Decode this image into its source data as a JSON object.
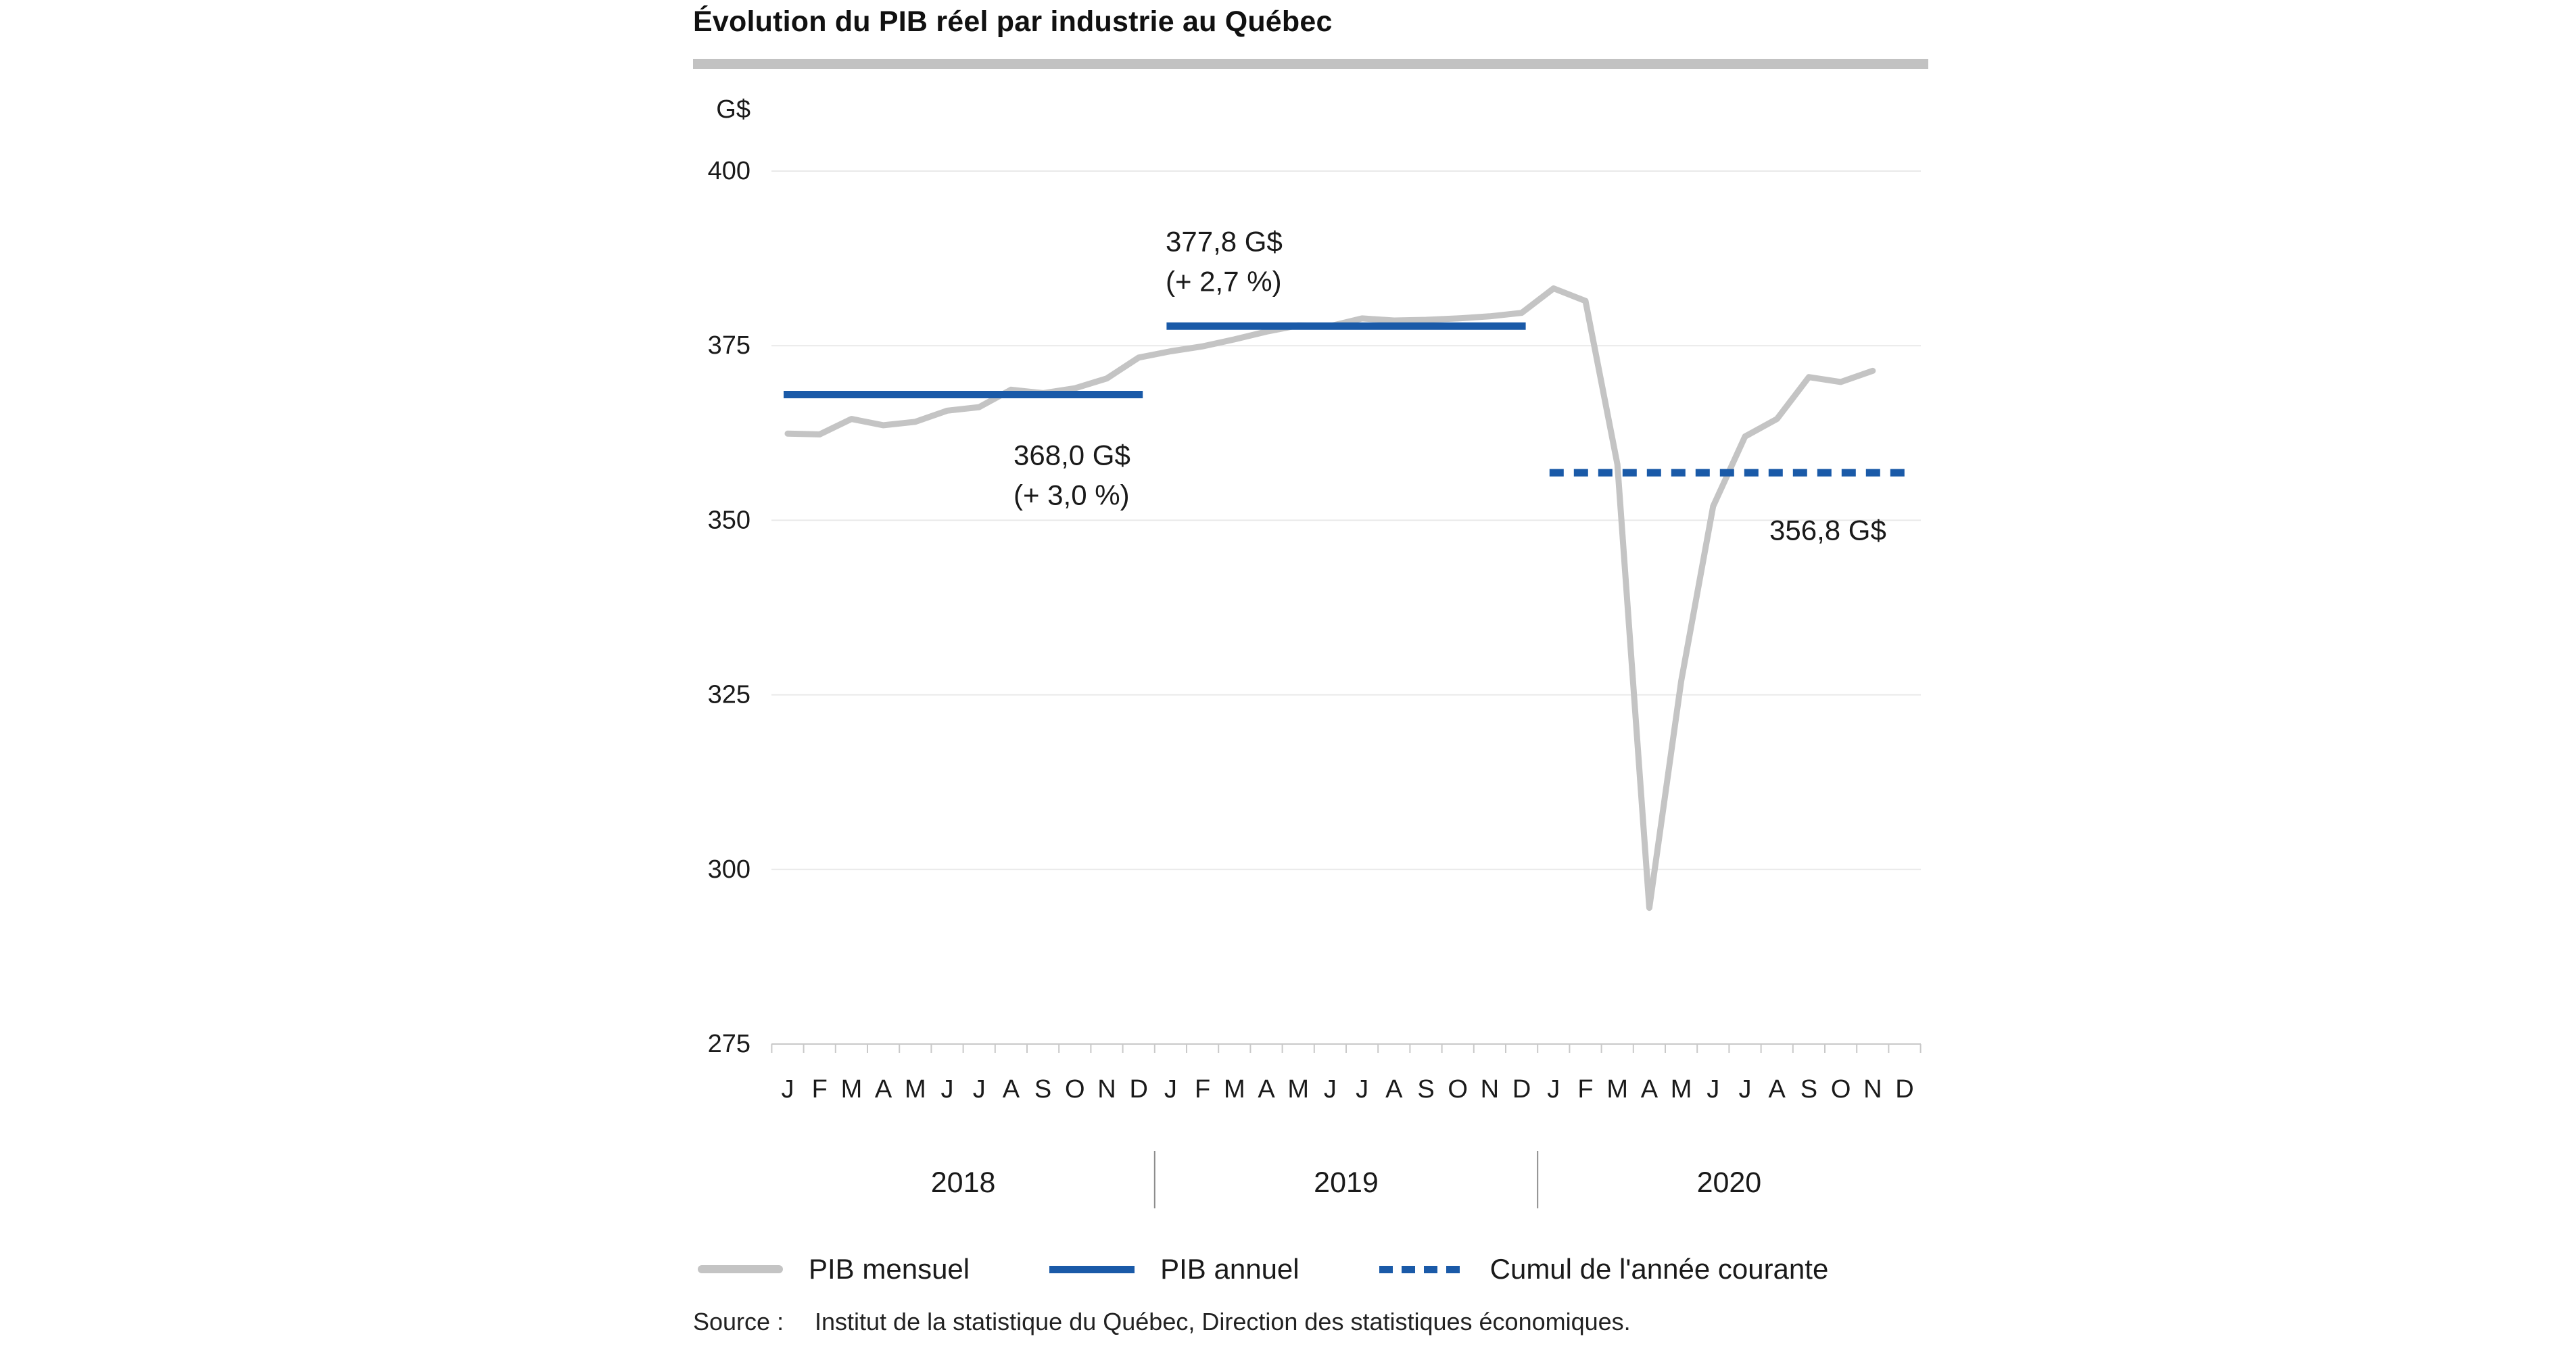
{
  "title": "Évolution du PIB réel par industrie au Québec",
  "colors": {
    "monthly": "#c4c4c4",
    "annual": "#1a5aa8",
    "grid": "#e9e9e9",
    "axis": "#c9c9c9",
    "separator": "#8c8c8c",
    "text": "#1a1a1a"
  },
  "legend": [
    {
      "label": "PIB mensuel",
      "style": "gray-solid"
    },
    {
      "label": "PIB annuel",
      "style": "blue-solid"
    },
    {
      "label": "Cumul de l'année courante",
      "style": "blue-dashed"
    }
  ],
  "source": {
    "prefix": "Source :",
    "text": "Institut de la statistique du Québec, Direction des statistiques économiques."
  },
  "chart_data": {
    "type": "line",
    "title": "Évolution du PIB réel par industrie au Québec",
    "ylabel": "G$",
    "ylim": [
      275,
      400
    ],
    "y_ticks": [
      400,
      375,
      350,
      325,
      300,
      275
    ],
    "grid": "horizontal-only",
    "n_months_axis": 36,
    "x_months": [
      "J",
      "F",
      "M",
      "A",
      "M",
      "J",
      "J",
      "A",
      "S",
      "O",
      "N",
      "D"
    ],
    "x_years": [
      "2018",
      "2019",
      "2020"
    ],
    "monthly_series": {
      "name": "PIB mensuel",
      "start": "2018-01",
      "end": "2020-11",
      "values": [
        362.4,
        362.3,
        364.5,
        363.6,
        364.1,
        365.7,
        366.2,
        368.7,
        368.2,
        368.9,
        370.3,
        373.3,
        374.2,
        374.9,
        375.9,
        377.0,
        377.9,
        377.8,
        378.9,
        378.6,
        378.7,
        378.9,
        379.2,
        379.7,
        383.2,
        381.4,
        358.0,
        294.5,
        327.0,
        352.0,
        362.0,
        364.5,
        370.5,
        369.8,
        371.4
      ]
    },
    "annual_series": {
      "name": "PIB annuel",
      "segments": [
        {
          "year": "2018",
          "year_index": 0,
          "value": 368.0,
          "label": "368,0 G$",
          "pct_label": "(+ 3,0 %)"
        },
        {
          "year": "2019",
          "year_index": 1,
          "value": 377.8,
          "label": "377,8 G$",
          "pct_label": "(+ 2,7 %)"
        }
      ]
    },
    "cumulative_series": {
      "name": "Cumul de l'année courante",
      "segments": [
        {
          "year": "2020",
          "year_index": 2,
          "value": 356.8,
          "label": "356,8 G$"
        }
      ]
    }
  }
}
